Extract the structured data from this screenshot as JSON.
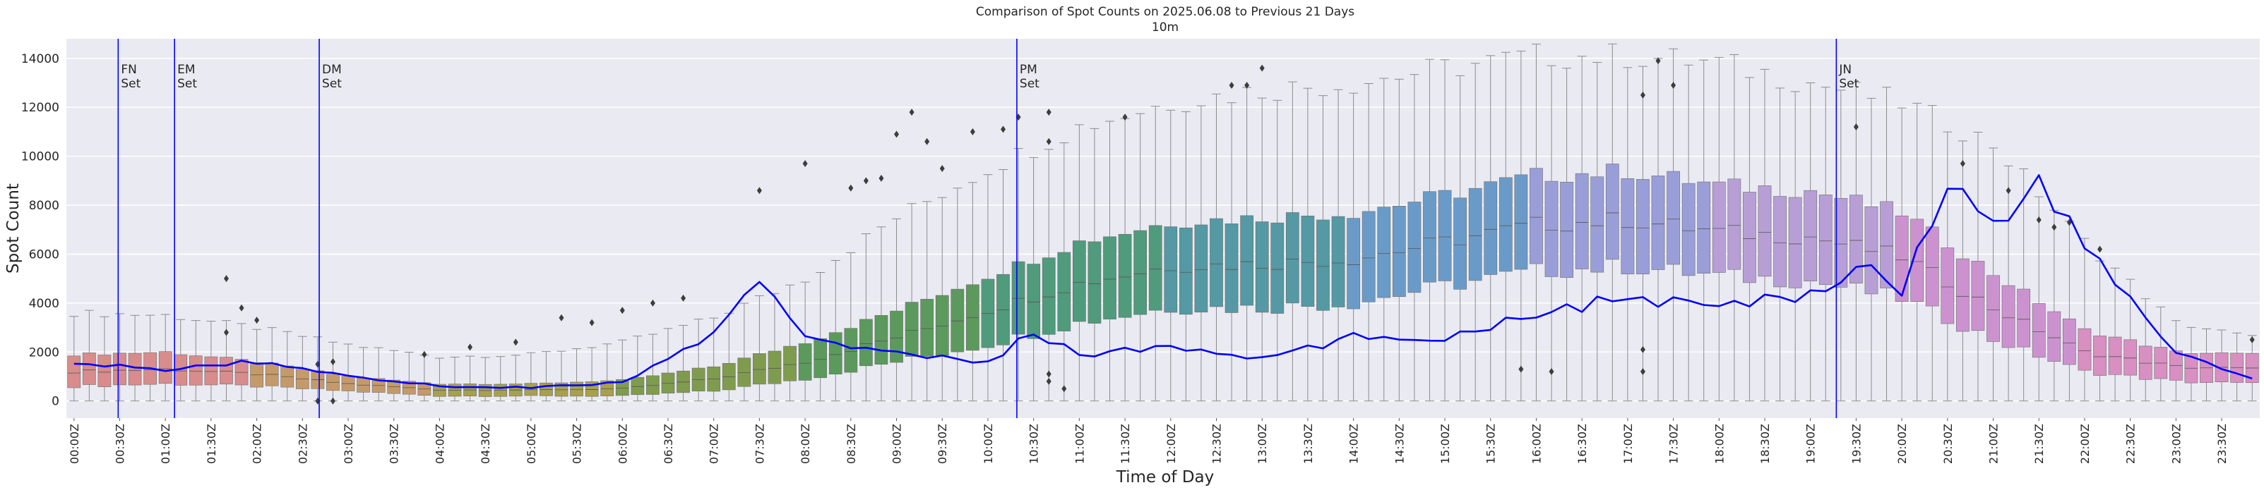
{
  "chart_data": {
    "type": "box",
    "title": "Comparison of Spot Counts on 2025.06.08 to Previous 21 Days",
    "subtitle": "10m",
    "xlabel": "Time of Day",
    "ylabel": "Spot Count",
    "ylim": [
      -700,
      14800
    ],
    "y_ticks": [
      0,
      2000,
      4000,
      6000,
      8000,
      10000,
      12000,
      14000
    ],
    "n_slots": 144,
    "x_tick_labels": [
      "00:00Z",
      "00:30Z",
      "01:00Z",
      "01:30Z",
      "02:00Z",
      "02:30Z",
      "03:00Z",
      "03:30Z",
      "04:00Z",
      "04:30Z",
      "05:00Z",
      "05:30Z",
      "06:00Z",
      "06:30Z",
      "07:00Z",
      "07:30Z",
      "08:00Z",
      "08:30Z",
      "09:00Z",
      "09:30Z",
      "10:00Z",
      "10:30Z",
      "11:00Z",
      "11:30Z",
      "12:00Z",
      "12:30Z",
      "13:00Z",
      "13:30Z",
      "14:00Z",
      "14:30Z",
      "15:00Z",
      "15:30Z",
      "16:00Z",
      "16:30Z",
      "17:00Z",
      "17:30Z",
      "18:00Z",
      "18:30Z",
      "19:00Z",
      "19:30Z",
      "20:00Z",
      "20:30Z",
      "21:00Z",
      "21:30Z",
      "22:00Z",
      "22:30Z",
      "23:00Z",
      "23:30Z"
    ],
    "median_profile": {
      "slot": [
        0,
        6,
        12,
        18,
        24,
        30,
        36,
        42,
        48,
        54,
        60,
        66,
        72,
        78,
        84,
        90,
        96,
        102,
        108,
        114,
        120,
        126,
        132,
        138,
        143
      ],
      "value": [
        1200,
        1300,
        1100,
        700,
        450,
        450,
        500,
        900,
        1600,
        2600,
        3700,
        4800,
        5500,
        5600,
        5800,
        6500,
        7200,
        7400,
        6900,
        6700,
        5900,
        3800,
        2000,
        1400,
        1300
      ]
    },
    "spread_profile": {
      "q1_offset": [
        600,
        600,
        500,
        300,
        250,
        250,
        300,
        500,
        700,
        1000,
        1400,
        1600,
        1700,
        1800,
        1800,
        1800,
        1900,
        1900,
        1800,
        1800,
        1700,
        1300,
        800,
        600,
        600
      ],
      "q3_offset": [
        700,
        700,
        500,
        300,
        250,
        250,
        350,
        500,
        800,
        1100,
        1400,
        1700,
        1800,
        1900,
        1900,
        1900,
        2000,
        2000,
        1900,
        1900,
        1800,
        1400,
        900,
        600,
        600
      ],
      "whisker_high": [
        3600,
        3500,
        3000,
        2300,
        1800,
        1900,
        2400,
        3400,
        5000,
        7500,
        9500,
        11200,
        12200,
        12700,
        13000,
        13600,
        14100,
        14100,
        13800,
        13000,
        12200,
        10500,
        6500,
        3200,
        2600
      ]
    },
    "series": [
      {
        "name": "2025.06.08",
        "color": "#0000ff",
        "anchors": {
          "slot": [
            0,
            6,
            12,
            18,
            24,
            30,
            36,
            42,
            45,
            48,
            54,
            60,
            63,
            66,
            72,
            78,
            84,
            90,
            96,
            102,
            108,
            114,
            117,
            120,
            123,
            126,
            129,
            132,
            138,
            143
          ],
          "value": [
            1500,
            1300,
            1600,
            1050,
            600,
            550,
            750,
            2700,
            4800,
            2700,
            1900,
            1600,
            2800,
            1900,
            2200,
            1700,
            2600,
            2600,
            3600,
            4200,
            3800,
            4400,
            5600,
            4600,
            8900,
            7400,
            8800,
            6300,
            2000,
            900
          ]
        }
      }
    ],
    "outliers": [
      {
        "slot": 10,
        "value": 2800
      },
      {
        "slot": 10,
        "value": 5000
      },
      {
        "slot": 11,
        "value": 3800
      },
      {
        "slot": 12,
        "value": 3300
      },
      {
        "slot": 16,
        "value": 1500
      },
      {
        "slot": 16,
        "value": 0
      },
      {
        "slot": 17,
        "value": 0
      },
      {
        "slot": 17,
        "value": 1600
      },
      {
        "slot": 23,
        "value": 1900
      },
      {
        "slot": 26,
        "value": 2200
      },
      {
        "slot": 29,
        "value": 2400
      },
      {
        "slot": 32,
        "value": 3400
      },
      {
        "slot": 34,
        "value": 3200
      },
      {
        "slot": 36,
        "value": 3700
      },
      {
        "slot": 38,
        "value": 4000
      },
      {
        "slot": 40,
        "value": 4200
      },
      {
        "slot": 45,
        "value": 8600
      },
      {
        "slot": 48,
        "value": 9700
      },
      {
        "slot": 51,
        "value": 8700
      },
      {
        "slot": 52,
        "value": 9000
      },
      {
        "slot": 53,
        "value": 9100
      },
      {
        "slot": 54,
        "value": 10900
      },
      {
        "slot": 55,
        "value": 11800
      },
      {
        "slot": 56,
        "value": 10600
      },
      {
        "slot": 57,
        "value": 9500
      },
      {
        "slot": 59,
        "value": 11000
      },
      {
        "slot": 61,
        "value": 11100
      },
      {
        "slot": 62,
        "value": 11600
      },
      {
        "slot": 64,
        "value": 11800
      },
      {
        "slot": 64,
        "value": 10600
      },
      {
        "slot": 64,
        "value": 1100
      },
      {
        "slot": 64,
        "value": 800
      },
      {
        "slot": 65,
        "value": 500
      },
      {
        "slot": 69,
        "value": 11600
      },
      {
        "slot": 76,
        "value": 12900
      },
      {
        "slot": 77,
        "value": 12900
      },
      {
        "slot": 78,
        "value": 13600
      },
      {
        "slot": 95,
        "value": 1300
      },
      {
        "slot": 97,
        "value": 1200
      },
      {
        "slot": 103,
        "value": 12500
      },
      {
        "slot": 103,
        "value": 2100
      },
      {
        "slot": 103,
        "value": 1200
      },
      {
        "slot": 104,
        "value": 13900
      },
      {
        "slot": 105,
        "value": 12900
      },
      {
        "slot": 117,
        "value": 11200
      },
      {
        "slot": 124,
        "value": 9700
      },
      {
        "slot": 127,
        "value": 8600
      },
      {
        "slot": 129,
        "value": 7400
      },
      {
        "slot": 130,
        "value": 7100
      },
      {
        "slot": 131,
        "value": 7300
      },
      {
        "slot": 133,
        "value": 6200
      },
      {
        "slot": 143,
        "value": 2500
      }
    ],
    "markers": [
      {
        "label": "FN\nSet",
        "slot": 2.9,
        "color": "#0000ff"
      },
      {
        "label": "EM\nSet",
        "slot": 6.6,
        "color": "#0000ff"
      },
      {
        "label": "DM\nSet",
        "slot": 16.1,
        "color": "#0000ff"
      },
      {
        "label": "PM\nSet",
        "slot": 61.9,
        "color": "#0000ff"
      },
      {
        "label": "JN\nSet",
        "slot": 115.7,
        "color": "#0000ff"
      }
    ],
    "grid": true,
    "style": {
      "plot_bg": "#eaeaf2",
      "grid_color": "#ffffff",
      "whisker_color": "#8c8c8c",
      "palette": [
        "#d88c8c",
        "#c59a6a",
        "#a7a04d",
        "#7f9c4e",
        "#5b9a5c",
        "#4f9b7c",
        "#5499a3",
        "#6a9bc8",
        "#9a9ed8",
        "#b79fd6",
        "#cc92cf",
        "#d88fc1"
      ]
    }
  }
}
